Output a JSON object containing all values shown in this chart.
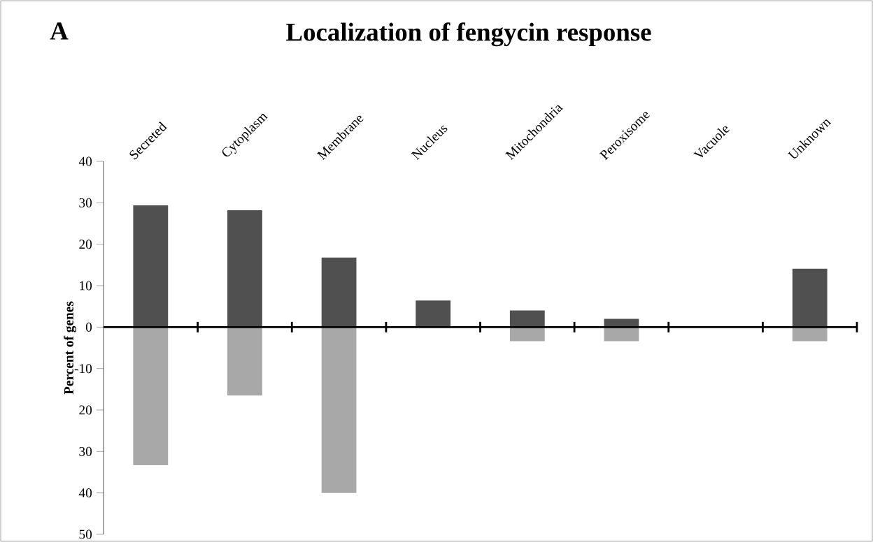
{
  "chart_data": {
    "type": "bar",
    "title": "Localization of fengycin response",
    "ylabel": "Percent of genes",
    "annotations": [
      "A"
    ],
    "categories": [
      "Secreted",
      "Cytoplasm",
      "Membrane",
      "Nucleus",
      "Mitochondria",
      "Peroxisome",
      "Vacuole",
      "Unknown"
    ],
    "stacked": true,
    "series": [
      {
        "color": "#505050",
        "values": [
          29.4,
          28.2,
          16.8,
          6.4,
          4.0,
          2.0,
          0,
          14.1
        ]
      },
      {
        "color": "#a8a8a8",
        "values": [
          -33.3,
          -16.5,
          -40.0,
          0,
          -3.4,
          -3.4,
          0,
          -3.4
        ]
      }
    ],
    "ylim": [
      -50,
      40
    ],
    "yticks": [
      40,
      30,
      20,
      10,
      0,
      -10,
      {
        "value": -20,
        "label": "20"
      },
      {
        "value": -30,
        "label": "30"
      },
      {
        "value": -40,
        "label": "40"
      },
      {
        "value": -50,
        "label": "50"
      }
    ]
  }
}
